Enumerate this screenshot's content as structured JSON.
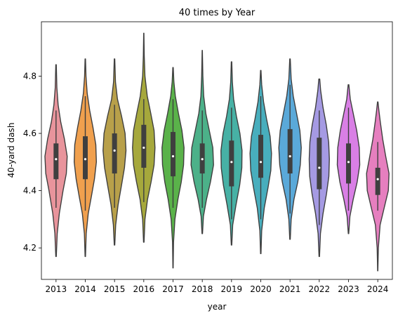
{
  "chart_data": {
    "type": "violin",
    "title": "40 times by Year",
    "xlabel": "year",
    "ylabel": "40-yard dash",
    "ylim": [
      4.09,
      4.99
    ],
    "yticks": [
      4.2,
      4.4,
      4.6,
      4.8
    ],
    "ytick_labels": [
      "4.2",
      "4.4",
      "4.6",
      "4.8"
    ],
    "grid": false,
    "legend": "none",
    "categories": [
      "2013",
      "2014",
      "2015",
      "2016",
      "2017",
      "2018",
      "2019",
      "2020",
      "2021",
      "2022",
      "2023",
      "2024"
    ],
    "colors": [
      "#e8949c",
      "#f0a04e",
      "#b8a04a",
      "#a6a83c",
      "#5ab24a",
      "#4cb189",
      "#47b1a5",
      "#48aebd",
      "#5aa9d9",
      "#a59ae3",
      "#d97fe5",
      "#e67fbf"
    ],
    "series": [
      {
        "category": "2013",
        "min": 4.17,
        "q1": 4.44,
        "median": 4.51,
        "q3": 4.565,
        "max": 4.84,
        "whisker_low": 4.34,
        "whisker_high": 4.68,
        "density": [
          [
            4.17,
            0.02
          ],
          [
            4.25,
            0.1
          ],
          [
            4.32,
            0.28
          ],
          [
            4.4,
            0.6
          ],
          [
            4.46,
            0.88
          ],
          [
            4.52,
            0.95
          ],
          [
            4.58,
            0.72
          ],
          [
            4.64,
            0.4
          ],
          [
            4.7,
            0.18
          ],
          [
            4.76,
            0.07
          ],
          [
            4.84,
            0.02
          ]
        ]
      },
      {
        "category": "2014",
        "min": 4.17,
        "q1": 4.44,
        "median": 4.51,
        "q3": 4.59,
        "max": 4.86,
        "whisker_low": 4.33,
        "whisker_high": 4.73,
        "density": [
          [
            4.17,
            0.02
          ],
          [
            4.25,
            0.08
          ],
          [
            4.32,
            0.25
          ],
          [
            4.38,
            0.52
          ],
          [
            4.44,
            0.78
          ],
          [
            4.5,
            0.95
          ],
          [
            4.56,
            0.9
          ],
          [
            4.62,
            0.66
          ],
          [
            4.68,
            0.38
          ],
          [
            4.74,
            0.16
          ],
          [
            4.8,
            0.06
          ],
          [
            4.86,
            0.02
          ]
        ]
      },
      {
        "category": "2015",
        "min": 4.21,
        "q1": 4.46,
        "median": 4.54,
        "q3": 4.6,
        "max": 4.86,
        "whisker_low": 4.34,
        "whisker_high": 4.7,
        "density": [
          [
            4.21,
            0.02
          ],
          [
            4.28,
            0.1
          ],
          [
            4.35,
            0.3
          ],
          [
            4.42,
            0.6
          ],
          [
            4.48,
            0.85
          ],
          [
            4.54,
            0.98
          ],
          [
            4.6,
            0.9
          ],
          [
            4.66,
            0.6
          ],
          [
            4.72,
            0.25
          ],
          [
            4.78,
            0.08
          ],
          [
            4.86,
            0.02
          ]
        ]
      },
      {
        "category": "2016",
        "min": 4.22,
        "q1": 4.48,
        "median": 4.55,
        "q3": 4.63,
        "max": 4.95,
        "whisker_low": 4.36,
        "whisker_high": 4.72,
        "density": [
          [
            4.22,
            0.02
          ],
          [
            4.3,
            0.1
          ],
          [
            4.37,
            0.32
          ],
          [
            4.43,
            0.62
          ],
          [
            4.49,
            0.88
          ],
          [
            4.55,
            0.96
          ],
          [
            4.61,
            0.88
          ],
          [
            4.67,
            0.6
          ],
          [
            4.73,
            0.3
          ],
          [
            4.8,
            0.1
          ],
          [
            4.87,
            0.04
          ],
          [
            4.95,
            0.01
          ]
        ]
      },
      {
        "category": "2017",
        "min": 4.13,
        "q1": 4.45,
        "median": 4.52,
        "q3": 4.605,
        "max": 4.83,
        "whisker_low": 4.34,
        "whisker_high": 4.72,
        "density": [
          [
            4.13,
            0.01
          ],
          [
            4.22,
            0.04
          ],
          [
            4.3,
            0.16
          ],
          [
            4.37,
            0.42
          ],
          [
            4.43,
            0.7
          ],
          [
            4.49,
            0.9
          ],
          [
            4.55,
            0.94
          ],
          [
            4.61,
            0.76
          ],
          [
            4.67,
            0.46
          ],
          [
            4.73,
            0.2
          ],
          [
            4.78,
            0.07
          ],
          [
            4.83,
            0.02
          ]
        ]
      },
      {
        "category": "2018",
        "min": 4.25,
        "q1": 4.46,
        "median": 4.51,
        "q3": 4.565,
        "max": 4.89,
        "whisker_low": 4.34,
        "whisker_high": 4.68,
        "density": [
          [
            4.25,
            0.02
          ],
          [
            4.31,
            0.1
          ],
          [
            4.37,
            0.36
          ],
          [
            4.43,
            0.7
          ],
          [
            4.49,
            0.96
          ],
          [
            4.55,
            0.9
          ],
          [
            4.61,
            0.6
          ],
          [
            4.67,
            0.3
          ],
          [
            4.73,
            0.12
          ],
          [
            4.8,
            0.05
          ],
          [
            4.89,
            0.01
          ]
        ]
      },
      {
        "category": "2019",
        "min": 4.21,
        "q1": 4.415,
        "median": 4.5,
        "q3": 4.575,
        "max": 4.85,
        "whisker_low": 4.3,
        "whisker_high": 4.69,
        "density": [
          [
            4.21,
            0.02
          ],
          [
            4.28,
            0.1
          ],
          [
            4.35,
            0.38
          ],
          [
            4.42,
            0.7
          ],
          [
            4.48,
            0.88
          ],
          [
            4.54,
            0.9
          ],
          [
            4.6,
            0.72
          ],
          [
            4.66,
            0.42
          ],
          [
            4.72,
            0.18
          ],
          [
            4.78,
            0.07
          ],
          [
            4.85,
            0.02
          ]
        ]
      },
      {
        "category": "2020",
        "min": 4.18,
        "q1": 4.445,
        "median": 4.5,
        "q3": 4.595,
        "max": 4.82,
        "whisker_low": 4.3,
        "whisker_high": 4.73,
        "density": [
          [
            4.18,
            0.02
          ],
          [
            4.26,
            0.08
          ],
          [
            4.34,
            0.3
          ],
          [
            4.41,
            0.62
          ],
          [
            4.47,
            0.86
          ],
          [
            4.53,
            0.92
          ],
          [
            4.59,
            0.8
          ],
          [
            4.65,
            0.5
          ],
          [
            4.71,
            0.24
          ],
          [
            4.77,
            0.08
          ],
          [
            4.82,
            0.02
          ]
        ]
      },
      {
        "category": "2021",
        "min": 4.23,
        "q1": 4.46,
        "median": 4.52,
        "q3": 4.615,
        "max": 4.86,
        "whisker_low": 4.32,
        "whisker_high": 4.77,
        "density": [
          [
            4.23,
            0.02
          ],
          [
            4.3,
            0.1
          ],
          [
            4.37,
            0.34
          ],
          [
            4.43,
            0.66
          ],
          [
            4.49,
            0.88
          ],
          [
            4.55,
            0.96
          ],
          [
            4.61,
            0.84
          ],
          [
            4.67,
            0.56
          ],
          [
            4.73,
            0.28
          ],
          [
            4.79,
            0.1
          ],
          [
            4.86,
            0.02
          ]
        ]
      },
      {
        "category": "2022",
        "min": 4.17,
        "q1": 4.405,
        "median": 4.48,
        "q3": 4.585,
        "max": 4.79,
        "whisker_low": 4.28,
        "whisker_high": 4.68,
        "density": [
          [
            4.17,
            0.02
          ],
          [
            4.25,
            0.1
          ],
          [
            4.32,
            0.32
          ],
          [
            4.39,
            0.62
          ],
          [
            4.45,
            0.82
          ],
          [
            4.51,
            0.86
          ],
          [
            4.57,
            0.8
          ],
          [
            4.63,
            0.6
          ],
          [
            4.69,
            0.32
          ],
          [
            4.75,
            0.12
          ],
          [
            4.79,
            0.04
          ]
        ]
      },
      {
        "category": "2023",
        "min": 4.25,
        "q1": 4.425,
        "median": 4.5,
        "q3": 4.565,
        "max": 4.77,
        "whisker_low": 4.33,
        "whisker_high": 4.69,
        "density": [
          [
            4.25,
            0.02
          ],
          [
            4.31,
            0.12
          ],
          [
            4.37,
            0.4
          ],
          [
            4.43,
            0.74
          ],
          [
            4.49,
            0.96
          ],
          [
            4.55,
            0.92
          ],
          [
            4.61,
            0.7
          ],
          [
            4.67,
            0.4
          ],
          [
            4.72,
            0.15
          ],
          [
            4.77,
            0.03
          ]
        ]
      },
      {
        "category": "2024",
        "min": 4.12,
        "q1": 4.385,
        "median": 4.44,
        "q3": 4.48,
        "max": 4.71,
        "whisker_low": 4.33,
        "whisker_high": 4.57,
        "density": [
          [
            4.12,
            0.01
          ],
          [
            4.2,
            0.05
          ],
          [
            4.28,
            0.2
          ],
          [
            4.34,
            0.55
          ],
          [
            4.4,
            0.9
          ],
          [
            4.46,
            0.96
          ],
          [
            4.52,
            0.68
          ],
          [
            4.58,
            0.42
          ],
          [
            4.64,
            0.22
          ],
          [
            4.68,
            0.1
          ],
          [
            4.71,
            0.02
          ]
        ]
      }
    ]
  }
}
